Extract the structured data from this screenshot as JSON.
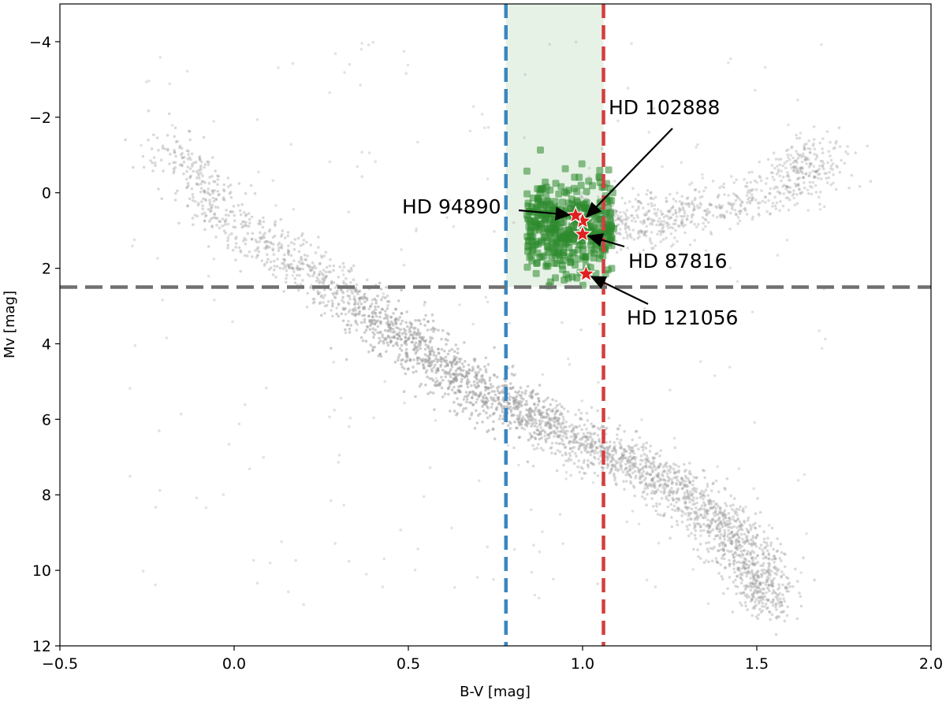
{
  "chart_data": {
    "type": "scatter",
    "title": "",
    "xlabel": "B-V [mag]",
    "ylabel": "Mv [mag]",
    "xlim": [
      -0.5,
      2.0
    ],
    "ylim": [
      12,
      -5
    ],
    "y_inverted": true,
    "grid": false,
    "legend": "none",
    "x_ticks": [
      -0.5,
      0.0,
      0.5,
      1.0,
      1.5,
      2.0
    ],
    "x_tick_labels": [
      "−0.5",
      "0.0",
      "0.5",
      "1.0",
      "1.5",
      "2.0"
    ],
    "y_ticks": [
      -4,
      -2,
      0,
      2,
      4,
      6,
      8,
      10,
      12
    ],
    "y_tick_labels": [
      "−4",
      "−2",
      "0",
      "2",
      "4",
      "6",
      "8",
      "10",
      "12"
    ],
    "background_population": {
      "description_color": "#9e9e9e",
      "main_sequence_ridge": [
        [
          -0.2,
          -1.5
        ],
        [
          0.0,
          0.9
        ],
        [
          0.3,
          2.6
        ],
        [
          0.5,
          3.9
        ],
        [
          0.7,
          5.3
        ],
        [
          0.9,
          6.1
        ],
        [
          1.1,
          7.0
        ],
        [
          1.3,
          8.0
        ],
        [
          1.45,
          9.3
        ],
        [
          1.55,
          11.0
        ]
      ],
      "giant_branch_ridge": [
        [
          0.95,
          0.6
        ],
        [
          1.1,
          0.9
        ],
        [
          1.3,
          0.6
        ],
        [
          1.6,
          -0.3
        ],
        [
          1.7,
          -1.1
        ]
      ]
    },
    "selected_series": {
      "color": "#2e8b2e",
      "x_range": [
        0.78,
        1.06
      ],
      "y_range": [
        -1.5,
        2.5
      ]
    },
    "highlight_stars": [
      {
        "label": "HD 102888",
        "x": 1.0,
        "y": 0.75,
        "label_x": 1.16,
        "label_y": -2.2
      },
      {
        "label": "HD 94890",
        "x": 0.98,
        "y": 0.6,
        "label_x": 0.64,
        "label_y": 0.4
      },
      {
        "label": "HD 87816",
        "x": 1.0,
        "y": 1.1,
        "label_x": 1.12,
        "label_y": 1.8
      },
      {
        "label": "HD 121056",
        "x": 1.01,
        "y": 2.15,
        "label_x": 1.13,
        "label_y": 3.1
      }
    ],
    "reference_lines": [
      {
        "orientation": "vertical",
        "x": 0.78,
        "color": "#3b87c0",
        "style": "dashed"
      },
      {
        "orientation": "vertical",
        "x": 1.06,
        "color": "#d43f3f",
        "style": "dashed"
      },
      {
        "orientation": "horizontal",
        "y": 2.5,
        "color": "#707070",
        "style": "dashed"
      }
    ],
    "shaded_region": {
      "x": [
        0.78,
        1.06
      ],
      "y": [
        -5,
        2.5
      ],
      "color": "#e6f2e6"
    }
  }
}
